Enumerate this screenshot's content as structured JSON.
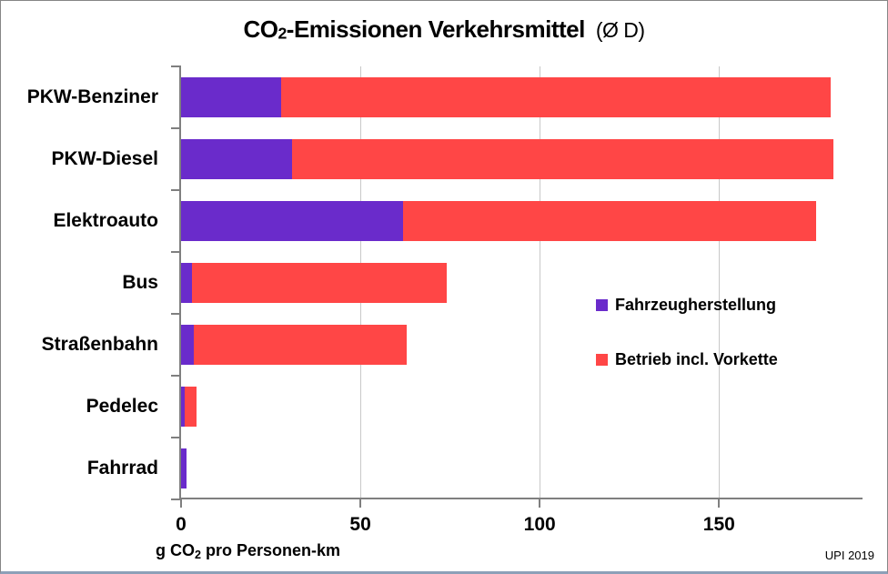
{
  "title": {
    "prefix": "CO",
    "subscript": "2",
    "main": "-Emissionen Verkehrsmittel",
    "suffix": "(Ø D)"
  },
  "xaxis_title": {
    "prefix": "g CO",
    "subscript": "2",
    "suffix": " pro Personen-km"
  },
  "source_note": "UPI 2019",
  "colors": {
    "herstellung": "#6a2bcb",
    "betrieb": "#ff4646",
    "axis": "#7f7f7f",
    "gridline": "#c8c8c8"
  },
  "chart_data": {
    "type": "bar",
    "orientation": "horizontal",
    "stacked": true,
    "title": "CO2-Emissionen Verkehrsmittel (Ø D)",
    "xlabel": "g CO2 pro Personen-km",
    "categories": [
      "PKW-Benziner",
      "PKW-Diesel",
      "Elektroauto",
      "Bus",
      "Straßenbahn",
      "Pedelec",
      "Fahrrad"
    ],
    "series": [
      {
        "name": "Fahrzeugherstellung",
        "color": "#6a2bcb",
        "values": [
          28,
          31,
          62,
          3,
          3.5,
          1,
          1.4
        ]
      },
      {
        "name": "Betrieb incl. Vorkette",
        "color": "#ff4646",
        "values": [
          153,
          151,
          115,
          71,
          59.5,
          3.3,
          0
        ]
      }
    ],
    "totals": [
      181,
      182,
      177,
      74,
      63,
      4.3,
      1.4
    ],
    "xlim": [
      0,
      190
    ],
    "xticks": [
      0,
      50,
      100,
      150
    ],
    "grid": true,
    "legend_position": "center-right",
    "annotation": "UPI 2019"
  }
}
